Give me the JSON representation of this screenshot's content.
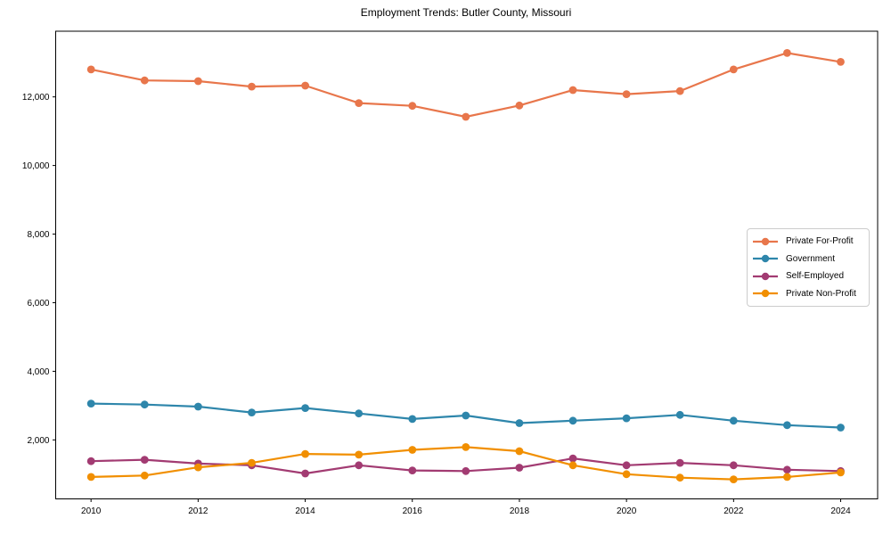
{
  "chart_data": {
    "type": "line",
    "title": "Employment Trends: Butler County, Missouri",
    "xlabel": "",
    "ylabel": "",
    "grid": false,
    "legend_position": "right-center",
    "background_color": "#ffffff",
    "axis_color": "#000000",
    "x": [
      2010,
      2011,
      2012,
      2013,
      2014,
      2015,
      2016,
      2017,
      2018,
      2019,
      2020,
      2021,
      2022,
      2023,
      2024
    ],
    "series": [
      {
        "name": "Private For-Profit",
        "color": "#E8764B",
        "values": [
          12800,
          12480,
          12460,
          12300,
          12330,
          11820,
          11740,
          11420,
          11750,
          12200,
          12080,
          12170,
          12800,
          13280,
          13020
        ]
      },
      {
        "name": "Government",
        "color": "#2E86AB",
        "values": [
          3060,
          3030,
          2970,
          2800,
          2930,
          2770,
          2610,
          2710,
          2490,
          2560,
          2630,
          2730,
          2560,
          2430,
          2360
        ]
      },
      {
        "name": "Self-Employed",
        "color": "#A23B72",
        "values": [
          1380,
          1420,
          1310,
          1260,
          1020,
          1260,
          1110,
          1090,
          1190,
          1460,
          1260,
          1330,
          1260,
          1130,
          1090
        ]
      },
      {
        "name": "Private Non-Profit",
        "color": "#F18F01",
        "values": [
          920,
          960,
          1200,
          1330,
          1590,
          1570,
          1710,
          1790,
          1670,
          1260,
          1000,
          900,
          850,
          920,
          1050
        ]
      }
    ],
    "xlim": [
      2009.34,
      2024.69
    ],
    "ylim": [
      280,
      13915
    ],
    "x_ticks": [
      2010,
      2012,
      2014,
      2016,
      2018,
      2020,
      2022,
      2024
    ],
    "x_tick_labels": [
      "2010",
      "2012",
      "2014",
      "2016",
      "2018",
      "2020",
      "2022",
      "2024"
    ],
    "y_ticks": [
      2000,
      4000,
      6000,
      8000,
      10000,
      12000
    ],
    "y_tick_labels": [
      "2,000",
      "4,000",
      "6,000",
      "8,000",
      "10,000",
      "12,000"
    ]
  }
}
